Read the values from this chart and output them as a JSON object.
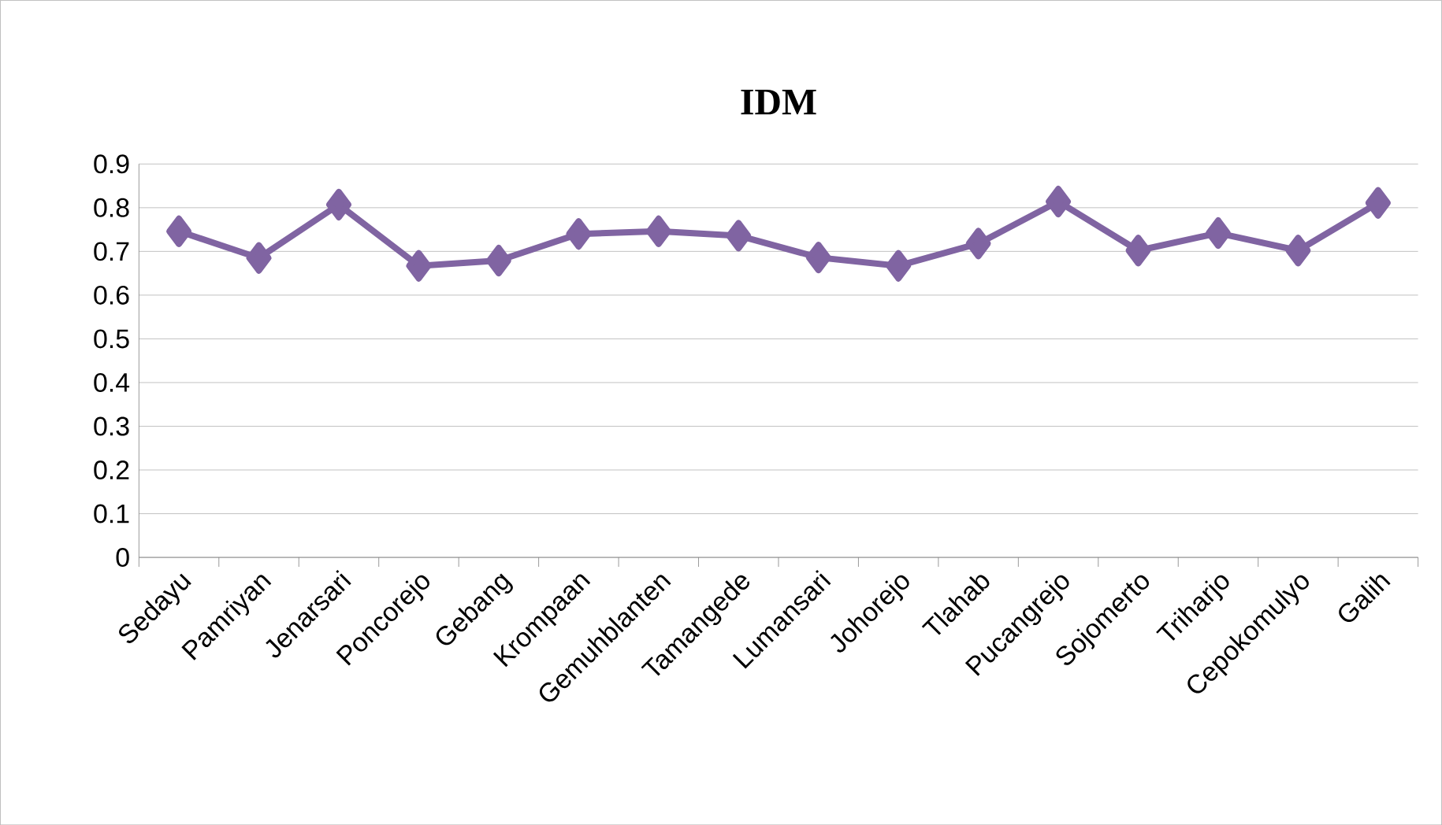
{
  "chart_data": {
    "type": "line",
    "title": "IDM",
    "categories": [
      "Sedayu",
      "Pamriyan",
      "Jenarsari",
      "Poncorejo",
      "Gebang",
      "Krompaan",
      "Gemuhblanten",
      "Tamangede",
      "Lumansari",
      "Johorejo",
      "Tlahab",
      "Pucangrejo",
      "Sojomerto",
      "Triharjo",
      "Cepokomulyo",
      "Galih"
    ],
    "series": [
      {
        "color": "#8064a2",
        "values": [
          0.746,
          0.685,
          0.807,
          0.667,
          0.679,
          0.74,
          0.746,
          0.736,
          0.686,
          0.667,
          0.718,
          0.814,
          0.702,
          0.742,
          0.702,
          0.811
        ]
      }
    ],
    "ylim": [
      0,
      0.9
    ],
    "yticks": [
      0,
      0.1,
      0.2,
      0.3,
      0.4,
      0.5,
      0.6,
      0.7,
      0.8,
      0.9
    ],
    "grid": "y",
    "marker": "diamond",
    "line_style": "solid"
  }
}
